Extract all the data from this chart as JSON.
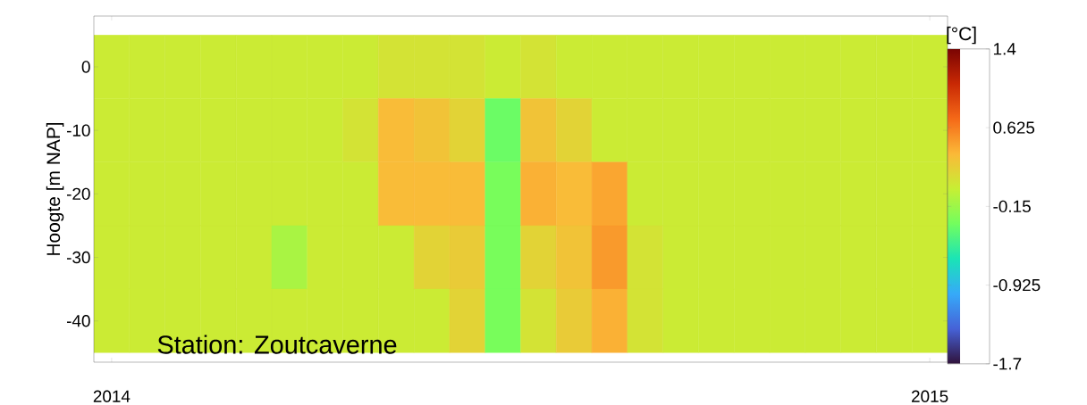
{
  "chart_data": {
    "type": "heatmap",
    "ylabel": "Hoogte [m NAP]",
    "clabel": "[°C]",
    "annotations": [
      "Station: Zoutcaverne"
    ],
    "clim": [
      -1.7,
      1.4
    ],
    "cticks": [
      -1.7,
      -0.925,
      -0.15,
      0.625,
      1.4
    ],
    "categories": [
      "2014",
      null,
      null,
      null,
      null,
      null,
      null,
      null,
      null,
      null,
      null,
      null,
      null,
      null,
      null,
      null,
      null,
      null,
      null,
      null,
      null,
      null,
      null,
      "2015"
    ],
    "y_categories": [
      "0",
      "-10",
      "-20",
      "-30",
      "-40"
    ],
    "cells": [
      [
        0.05,
        0.05,
        0.05,
        0.05,
        0.05,
        0.05,
        0.05,
        0.05,
        0.1,
        0.1,
        0.1,
        0.05,
        0.1,
        0.05,
        0.05,
        0.05,
        0.05,
        0.05,
        0.05,
        0.05,
        0.05,
        0.05,
        0.05,
        0.05
      ],
      [
        0.05,
        0.05,
        0.05,
        0.05,
        0.05,
        0.05,
        0.05,
        0.1,
        0.35,
        0.3,
        0.2,
        -0.35,
        0.3,
        0.2,
        0.05,
        0.05,
        0.05,
        0.05,
        0.05,
        0.05,
        0.05,
        0.05,
        0.05,
        0.05
      ],
      [
        0.05,
        0.05,
        0.05,
        0.05,
        0.05,
        0.05,
        0.05,
        0.05,
        0.35,
        0.35,
        0.35,
        -0.3,
        0.4,
        0.35,
        0.45,
        0.05,
        0.05,
        0.05,
        0.05,
        0.05,
        0.05,
        0.05,
        0.05,
        0.05
      ],
      [
        0.05,
        0.05,
        0.05,
        0.05,
        0.05,
        -0.1,
        0.05,
        0.05,
        0.05,
        0.2,
        0.25,
        -0.3,
        0.2,
        0.3,
        0.5,
        0.1,
        0.05,
        0.05,
        0.05,
        0.05,
        0.05,
        0.05,
        0.05,
        0.05
      ],
      [
        0.05,
        0.05,
        0.05,
        0.05,
        0.05,
        0.05,
        0.05,
        0.05,
        0.05,
        0.05,
        0.2,
        -0.3,
        0.1,
        0.25,
        0.4,
        0.1,
        0.05,
        0.05,
        0.05,
        0.05,
        0.05,
        0.05,
        0.05,
        0.05
      ]
    ]
  }
}
